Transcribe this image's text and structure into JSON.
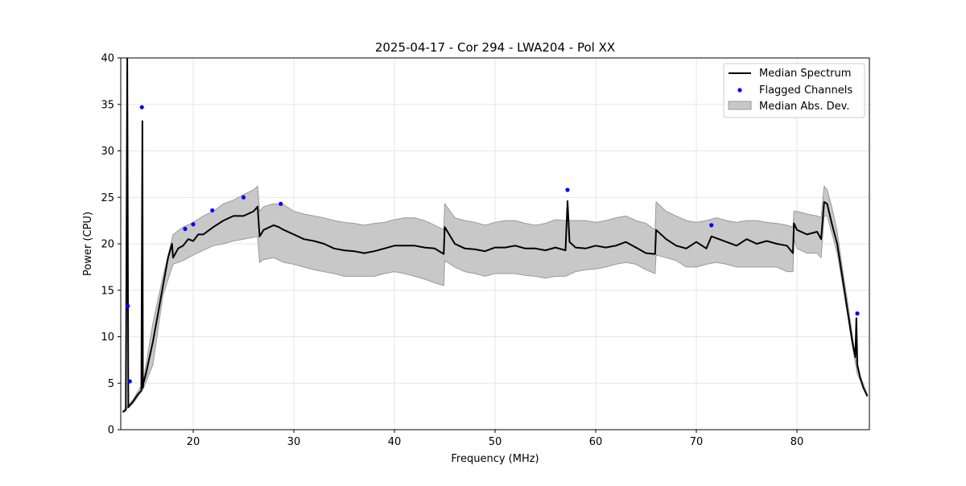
{
  "chart_data": {
    "type": "line",
    "title": "2025-04-17 - Cor 294 - LWA204 - Pol XX",
    "xlabel": "Frequency (MHz)",
    "ylabel": "Power (CPU)",
    "xlim": [
      12.8,
      87.2
    ],
    "ylim": [
      0,
      40
    ],
    "xticks": [
      20,
      30,
      40,
      50,
      60,
      70,
      80
    ],
    "yticks": [
      0,
      5,
      10,
      15,
      20,
      25,
      30,
      35,
      40
    ],
    "x_tick_labels": [
      "20",
      "30",
      "40",
      "50",
      "60",
      "70",
      "80"
    ],
    "y_tick_labels": [
      "0",
      "5",
      "10",
      "15",
      "20",
      "25",
      "30",
      "35",
      "40"
    ],
    "grid": true,
    "legend_position": "top-right",
    "legend": [
      "Median Spectrum",
      "Flagged Channels",
      "Median Abs. Dev."
    ],
    "colors": {
      "median_line": "#000000",
      "flagged_points": "#0000ff",
      "mad_fill": "#c8c8c8",
      "mad_edge": "#9a9a9a",
      "grid": "#e6e6e6"
    },
    "series": [
      {
        "name": "Median Spectrum",
        "kind": "line",
        "x": [
          13.0,
          13.3,
          13.45,
          13.55,
          13.7,
          14.0,
          14.5,
          14.85,
          14.95,
          15.0,
          15.05,
          15.3,
          15.6,
          16.0,
          16.5,
          17.0,
          17.5,
          17.9,
          18.0,
          18.5,
          19.0,
          19.5,
          20.0,
          20.5,
          21.0,
          22.0,
          23.0,
          24.0,
          25.0,
          26.0,
          26.4,
          26.6,
          27.0,
          28.0,
          28.5,
          29.0,
          30.0,
          31.0,
          32.0,
          33.0,
          34.0,
          35.0,
          36.0,
          37.0,
          38.0,
          39.0,
          40.0,
          41.0,
          42.0,
          43.0,
          44.0,
          44.9,
          45.0,
          46.0,
          47.0,
          48.0,
          49.0,
          50.0,
          51.0,
          52.0,
          53.0,
          54.0,
          55.0,
          56.0,
          57.0,
          57.2,
          57.4,
          58.0,
          59.0,
          60.0,
          61.0,
          62.0,
          63.0,
          64.0,
          65.0,
          65.9,
          66.0,
          67.0,
          68.0,
          69.0,
          70.0,
          71.0,
          71.5,
          72.0,
          73.0,
          74.0,
          75.0,
          76.0,
          77.0,
          78.0,
          79.0,
          79.6,
          79.7,
          80.0,
          81.0,
          82.0,
          82.4,
          82.7,
          83.0,
          83.5,
          84.0,
          84.5,
          85.0,
          85.5,
          85.8,
          85.9,
          86.0,
          86.3,
          86.6,
          87.0
        ],
        "y": [
          1.9,
          2.1,
          40.0,
          2.4,
          2.6,
          3.0,
          3.8,
          4.2,
          33.2,
          4.5,
          5.0,
          6.0,
          7.5,
          9.5,
          12.5,
          15.5,
          18.5,
          20.0,
          18.5,
          19.5,
          19.8,
          20.5,
          20.3,
          21.0,
          21.0,
          21.8,
          22.5,
          23.0,
          23.0,
          23.5,
          24.0,
          20.8,
          21.5,
          22.0,
          21.8,
          21.5,
          21.0,
          20.5,
          20.3,
          20.0,
          19.5,
          19.3,
          19.2,
          19.0,
          19.2,
          19.5,
          19.8,
          19.8,
          19.8,
          19.6,
          19.5,
          18.9,
          21.8,
          20.0,
          19.5,
          19.4,
          19.2,
          19.6,
          19.6,
          19.8,
          19.5,
          19.5,
          19.3,
          19.6,
          19.3,
          24.6,
          20.2,
          19.6,
          19.5,
          19.8,
          19.6,
          19.8,
          20.2,
          19.6,
          19.0,
          18.9,
          21.5,
          20.5,
          19.8,
          19.5,
          20.2,
          19.5,
          20.8,
          20.6,
          20.2,
          19.8,
          20.5,
          20.0,
          20.3,
          20.0,
          19.8,
          19.0,
          22.2,
          21.5,
          21.0,
          21.3,
          20.5,
          24.5,
          24.3,
          22.0,
          20.0,
          16.5,
          13.0,
          9.5,
          7.8,
          12.0,
          7.0,
          5.5,
          4.5,
          3.6
        ]
      },
      {
        "name": "Flagged Channels",
        "kind": "scatter",
        "x": [
          13.5,
          13.7,
          14.9,
          19.2,
          20.0,
          21.9,
          25.0,
          28.7,
          57.2,
          71.5,
          86.0
        ],
        "y": [
          13.3,
          5.2,
          34.7,
          21.6,
          22.1,
          23.6,
          25.0,
          24.3,
          25.8,
          22.0,
          12.5
        ]
      },
      {
        "name": "Median Abs. Dev.",
        "kind": "band",
        "x": [
          13.0,
          14.0,
          15.0,
          16.0,
          17.0,
          18.0,
          19.0,
          20.0,
          21.0,
          22.0,
          23.0,
          24.0,
          25.0,
          26.0,
          26.4,
          26.6,
          27.0,
          28.0,
          29.0,
          30.0,
          31.0,
          32.0,
          33.0,
          34.0,
          35.0,
          36.0,
          37.0,
          38.0,
          39.0,
          40.0,
          41.0,
          42.0,
          43.0,
          44.0,
          44.9,
          45.0,
          46.0,
          47.0,
          48.0,
          49.0,
          50.0,
          51.0,
          52.0,
          53.0,
          54.0,
          55.0,
          56.0,
          57.0,
          58.0,
          59.0,
          60.0,
          61.0,
          62.0,
          63.0,
          64.0,
          65.0,
          65.9,
          66.0,
          67.0,
          68.0,
          69.0,
          70.0,
          71.0,
          72.0,
          73.0,
          74.0,
          75.0,
          76.0,
          77.0,
          78.0,
          79.0,
          79.6,
          79.7,
          80.0,
          81.0,
          82.0,
          82.4,
          82.7,
          83.0,
          83.5,
          84.0,
          84.5,
          85.0,
          85.5,
          86.0,
          86.5,
          87.0
        ],
        "lower": [
          1.9,
          2.8,
          4.3,
          7.0,
          14.5,
          17.8,
          18.2,
          18.8,
          19.3,
          19.8,
          20.0,
          20.3,
          20.5,
          20.7,
          20.8,
          18.0,
          18.3,
          18.5,
          18.0,
          17.8,
          17.5,
          17.2,
          17.0,
          16.8,
          16.5,
          16.5,
          16.5,
          16.5,
          16.8,
          17.0,
          16.8,
          16.5,
          16.2,
          15.8,
          15.5,
          18.2,
          17.5,
          17.0,
          16.8,
          16.5,
          16.8,
          16.8,
          16.8,
          16.6,
          16.5,
          16.3,
          16.5,
          16.5,
          17.0,
          17.2,
          17.3,
          17.5,
          17.8,
          18.0,
          17.8,
          17.2,
          16.8,
          18.8,
          18.5,
          18.2,
          17.5,
          17.5,
          17.8,
          18.0,
          17.8,
          17.5,
          17.5,
          17.5,
          17.5,
          17.5,
          17.0,
          17.0,
          20.5,
          19.5,
          19.0,
          19.0,
          18.5,
          23.0,
          23.0,
          21.0,
          19.0,
          15.8,
          12.5,
          9.0,
          6.0,
          4.8,
          3.6
        ],
        "upper": [
          2.0,
          3.2,
          5.0,
          11.5,
          16.5,
          21.0,
          21.8,
          22.3,
          23.0,
          23.5,
          24.3,
          24.7,
          25.3,
          25.8,
          26.2,
          23.5,
          24.0,
          24.3,
          24.2,
          23.5,
          23.2,
          23.0,
          22.8,
          22.5,
          22.3,
          22.2,
          22.0,
          22.2,
          22.3,
          22.6,
          22.8,
          22.8,
          22.5,
          22.0,
          21.5,
          24.3,
          22.8,
          22.5,
          22.3,
          22.0,
          22.3,
          22.5,
          22.5,
          22.2,
          22.0,
          22.2,
          22.6,
          22.5,
          22.5,
          22.5,
          22.3,
          22.5,
          22.8,
          23.0,
          22.5,
          22.2,
          21.5,
          24.5,
          23.5,
          23.0,
          22.5,
          22.3,
          22.5,
          22.8,
          22.5,
          22.3,
          22.5,
          22.5,
          22.3,
          22.2,
          22.0,
          21.8,
          23.5,
          23.5,
          23.2,
          23.0,
          22.8,
          26.2,
          25.8,
          23.8,
          21.3,
          17.5,
          14.0,
          10.2,
          6.5,
          5.2,
          3.8
        ]
      }
    ]
  }
}
